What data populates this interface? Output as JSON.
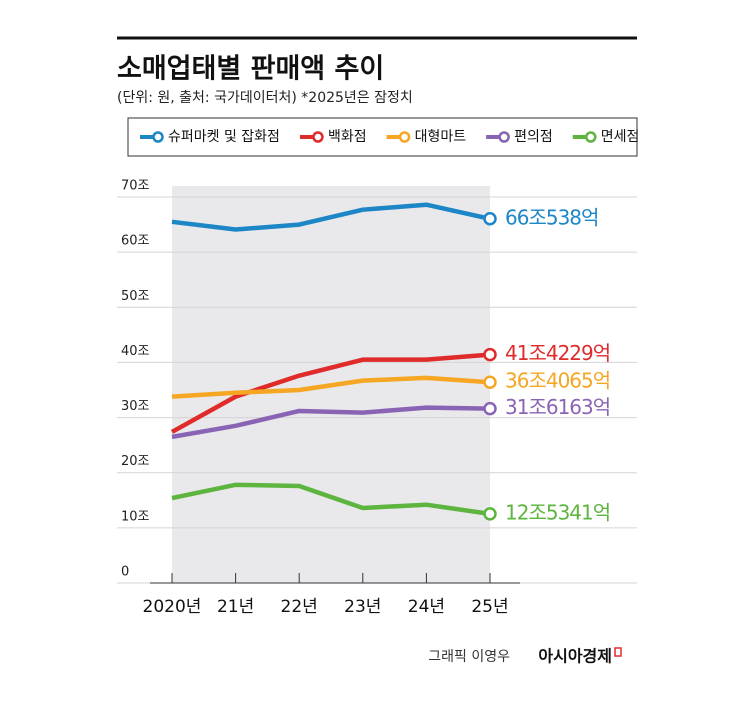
{
  "chart_data": {
    "type": "line",
    "title": "소매업태별 판매액 추이",
    "subtitle": "(단위: 원, 출처: 국가데이터처)  *2025년은 잠정치",
    "credit": "그래픽 이영우",
    "publisher": "아시아경제",
    "categories": [
      "2020년",
      "21년",
      "22년",
      "23년",
      "24년",
      "25년"
    ],
    "ylim": [
      0,
      70
    ],
    "yticks": [
      0,
      {
        "value": 10,
        "label": "10조"
      },
      {
        "value": 20,
        "label": "20조"
      },
      {
        "value": 30,
        "label": "30조"
      },
      {
        "value": 40,
        "label": "40조"
      },
      {
        "value": 50,
        "label": "50조"
      },
      {
        "value": 60,
        "label": "60조"
      },
      {
        "value": 70,
        "label": "70조"
      }
    ],
    "grid": true,
    "legend": "top",
    "series": [
      {
        "name": "슈퍼마켓 및 잡화점",
        "color": "#1d86c6",
        "values": [
          65.5,
          64.1,
          65.0,
          67.7,
          68.6,
          66.0538
        ],
        "value_labels": [
          null,
          null,
          null,
          null,
          null,
          "66조538억"
        ]
      },
      {
        "name": "백화점",
        "color": "#e02b2b",
        "values": [
          27.4,
          33.8,
          37.6,
          40.5,
          40.5,
          41.4229
        ],
        "value_labels": [
          null,
          null,
          null,
          null,
          null,
          "41조4229억"
        ]
      },
      {
        "name": "대형마트",
        "color": "#f5a623",
        "values": [
          33.8,
          34.5,
          35.0,
          36.7,
          37.2,
          36.4065
        ],
        "value_labels": [
          null,
          null,
          null,
          null,
          null,
          "36조4065억"
        ]
      },
      {
        "name": "편의점",
        "color": "#8a64b4",
        "values": [
          26.5,
          28.5,
          31.2,
          30.9,
          31.8,
          31.6163
        ],
        "value_labels": [
          null,
          null,
          null,
          null,
          null,
          "31조6163억"
        ]
      },
      {
        "name": "면세점",
        "color": "#5db53f",
        "values": [
          15.4,
          17.8,
          17.6,
          13.6,
          14.2,
          12.5341
        ],
        "value_labels": [
          null,
          null,
          null,
          null,
          null,
          "12조5341억"
        ]
      }
    ]
  }
}
